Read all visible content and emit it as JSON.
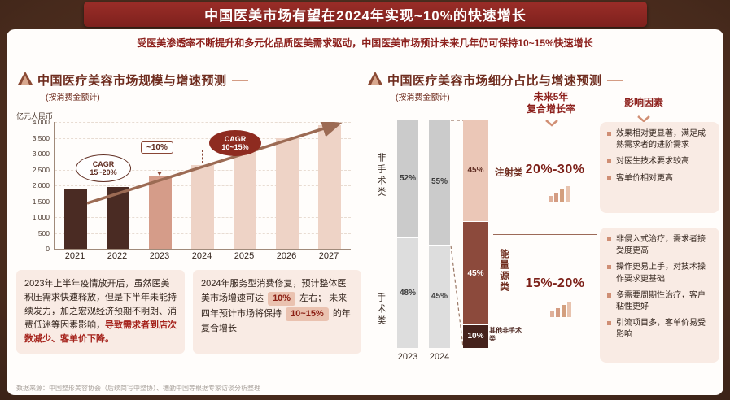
{
  "page": {
    "title": "中国医美市场有望在2024年实现~10%的快速增长",
    "subtitle": "受医美渗透率不断提升和多元化品质医美需求驱动，中国医美市场预计未来几年仍可保持10~15%快速增长",
    "source": "数据来源：中国整形美容协会（后续简写中整协）、德勤中国等根据专家访谈分析整理"
  },
  "left_panel": {
    "title": "中国医疗美容市场规模与增速预测",
    "subtitle": "(按消费金额计)",
    "unit": "亿元人民币",
    "annotations": {
      "cagr_past": {
        "line1": "CAGR",
        "line2": "15~20%"
      },
      "growth_2024": "~10%",
      "cagr_future": {
        "line1": "CAGR",
        "line2": "10~15%"
      }
    },
    "note_2023": {
      "normal": "2023年上半年疫情放开后，虽然医美积压需求快速释放，但是下半年未能持续发力，加之宏观经济预期不明朗、消费低迷等因素影响，",
      "highlight": "导致需求者到店次数减少、客单价下降。"
    },
    "note_2024": {
      "part1": "2024年服务型消费修复，预计整体医美市场增速可达",
      "badge1": "10%",
      "part2": "左右；",
      "part3": "未来四年预计市场将保持",
      "badge2": "10~15%",
      "part4": "的年复合增长"
    }
  },
  "right_panel": {
    "title": "中国医疗美容市场细分占比与增速预测",
    "subtitle": "(按消费金额计)",
    "col_cagr": {
      "line1": "未来5年",
      "line2": "复合增长率"
    },
    "col_factors": "影响因素",
    "cat_nonsurgical": "非手术类",
    "cat_surgical": "手术类",
    "seg_injection": "注射类",
    "seg_energy": "能量源类",
    "seg_other": "其他非手术类",
    "factors_injection": [
      "效果相对更显著，满足成熟需求者的进阶需求",
      "对医生技术要求较高",
      "客单价相对更高"
    ],
    "factors_energy": [
      "非侵入式治疗，需求者接受度更高",
      "操作更易上手，对技术操作要求更基础",
      "多需要周期性治疗，客户粘性更好",
      "引流项目多，客单价易受影响"
    ]
  },
  "chart_data": [
    {
      "type": "bar",
      "title": "中国医疗美容市场规模与增速预测（按消费金额计）",
      "ylabel": "亿元人民币",
      "xlabel": "",
      "categories": [
        "2021",
        "2022",
        "2023",
        "2024",
        "2025",
        "2026",
        "2027"
      ],
      "values": [
        1900,
        1950,
        2300,
        2650,
        3100,
        3500,
        3900
      ],
      "ylim": [
        0,
        4000
      ],
      "ytick_step": 500,
      "grid": true,
      "bar_colors": [
        "#4a2b23",
        "#4a2b23",
        "#d59c89",
        "#eed3c6",
        "#eed3c6",
        "#eed3c6",
        "#eed3c6"
      ],
      "annotations": [
        "CAGR 15~20%（历史）",
        "2024年增速~10%",
        "CAGR 10~15%（未来预测）"
      ]
    },
    {
      "type": "stacked-bar",
      "title": "中国医疗美容市场细分占比与增速预测（按消费金额计）",
      "unit": "%",
      "segments_order": "top_to_bottom",
      "bars": [
        {
          "label": "2023",
          "segments": [
            {
              "name": "非手术类",
              "value": 52,
              "color": "#cbcbcb",
              "text_color": "#3c3c3c"
            },
            {
              "name": "手术类",
              "value": 48,
              "color": "#dddddd",
              "text_color": "#3c3c3c"
            }
          ]
        },
        {
          "label": "2024",
          "segments": [
            {
              "name": "非手术类",
              "value": 55,
              "color": "#cbcbcb",
              "text_color": "#3c3c3c"
            },
            {
              "name": "手术类",
              "value": 45,
              "color": "#dddddd",
              "text_color": "#3c3c3c"
            }
          ]
        },
        {
          "label": "",
          "segments": [
            {
              "name": "注射类",
              "value": 45,
              "color": "#ebc7b7",
              "text_color": "#5f2d22"
            },
            {
              "name": "能量源类",
              "value": 45,
              "color": "#8c4a3c",
              "text_color": "#ffffff"
            },
            {
              "name": "其他非手术类",
              "value": 10,
              "color": "#45221c",
              "text_color": "#ffffff"
            }
          ]
        }
      ],
      "growth_rates": [
        {
          "segment": "注射类",
          "cagr": "20%-30%"
        },
        {
          "segment": "能量源类",
          "cagr": "15%-20%"
        }
      ]
    }
  ]
}
